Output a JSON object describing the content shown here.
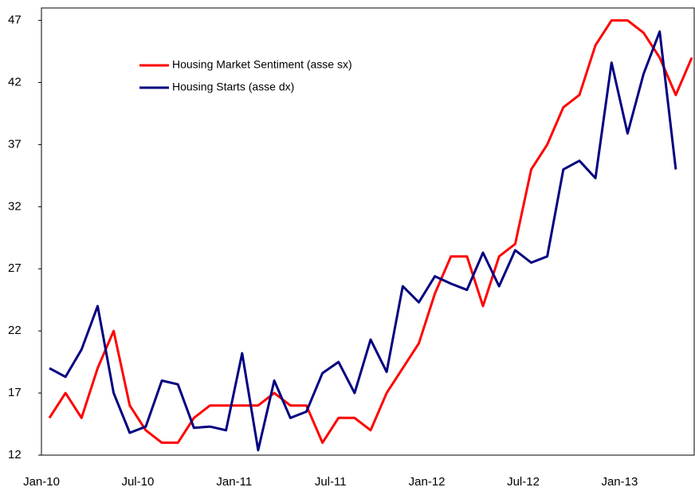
{
  "chart_data": {
    "type": "line",
    "categories": [
      "Jan-10",
      null,
      null,
      null,
      null,
      null,
      "Jul-10",
      null,
      null,
      null,
      null,
      null,
      "Jan-11",
      null,
      null,
      null,
      null,
      null,
      "Jul-11",
      null,
      null,
      null,
      null,
      null,
      "Jan-12",
      null,
      null,
      null,
      null,
      null,
      "Jul-12",
      null,
      null,
      null,
      null,
      null,
      "Jan-13",
      null,
      null,
      null,
      null
    ],
    "series": [
      {
        "name": "Housing Market Sentiment (asse sx)",
        "color": "#ff0000",
        "values": [
          15,
          17,
          15,
          19,
          22,
          16,
          14,
          13,
          13,
          15,
          16,
          16,
          16,
          16,
          17,
          16,
          16,
          13,
          15,
          15,
          14,
          17,
          19,
          21,
          25,
          28,
          28,
          24,
          28,
          29,
          35,
          37,
          40,
          41,
          45,
          47,
          47,
          46,
          44,
          41,
          44
        ]
      },
      {
        "name": "Housing Starts (asse dx)",
        "color": "#000080",
        "values": [
          19,
          18.3,
          20.5,
          24,
          17,
          13.8,
          14.3,
          18,
          17.7,
          14.2,
          14.3,
          14,
          20.2,
          12.4,
          18,
          15,
          15.5,
          18.6,
          19.5,
          17,
          21.3,
          18.7,
          25.6,
          24.3,
          26.4,
          25.8,
          25.3,
          28.3,
          25.6,
          28.5,
          27.5,
          28,
          35,
          35.7,
          34.3,
          43.6,
          37.9,
          42.7,
          46.1,
          35,
          null
        ]
      }
    ],
    "ylim": [
      12,
      48
    ],
    "yticks": [
      12,
      17,
      22,
      27,
      32,
      37,
      42,
      47
    ],
    "grid": false,
    "legend": "upper left"
  }
}
